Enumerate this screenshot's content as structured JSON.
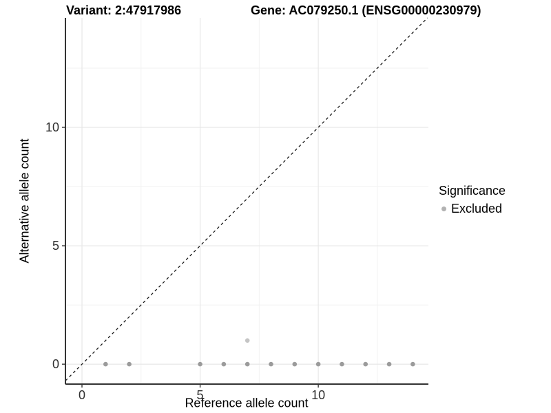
{
  "header": {
    "left_title": "Variant: 2:47917986",
    "right_title": "Gene: AC079250.1 (ENSG00000230979)"
  },
  "chart_data": {
    "type": "scatter",
    "xlabel": "Reference allele count",
    "ylabel": "Alternative allele count",
    "xlim": [
      -0.7,
      14.66
    ],
    "ylim": [
      -0.84,
      14.62
    ],
    "x_tick_values": [
      0,
      5,
      10
    ],
    "x_tick_labels": [
      "0",
      "5",
      "10"
    ],
    "y_tick_values": [
      0,
      5,
      10
    ],
    "y_tick_labels": [
      "0",
      "5",
      "10"
    ],
    "x_minor_gridlines": [
      2.5,
      7.5,
      12.5
    ],
    "y_minor_gridlines": [
      2.5,
      7.5,
      12.5
    ],
    "grid": true,
    "identity_line": {
      "slope": 1,
      "intercept": 0,
      "style": "dashed",
      "color": "#1a1a1a"
    },
    "series": [
      {
        "name": "Excluded",
        "color": "#9b9b9b",
        "points": [
          [
            1,
            0
          ],
          [
            2,
            0
          ],
          [
            5,
            0
          ],
          [
            6,
            0
          ],
          [
            7,
            0
          ],
          [
            8,
            0
          ],
          [
            9,
            0
          ],
          [
            10,
            0
          ],
          [
            11,
            0
          ],
          [
            12,
            0
          ],
          [
            13,
            0
          ],
          [
            14,
            0
          ]
        ]
      },
      {
        "name": "Excluded",
        "color": "#c5c5c5",
        "points": [
          [
            7,
            1
          ]
        ]
      }
    ],
    "legend": {
      "position": "right",
      "title": "Significance",
      "items": [
        {
          "label": "Excluded",
          "color": "#b2b2b2"
        }
      ]
    }
  }
}
